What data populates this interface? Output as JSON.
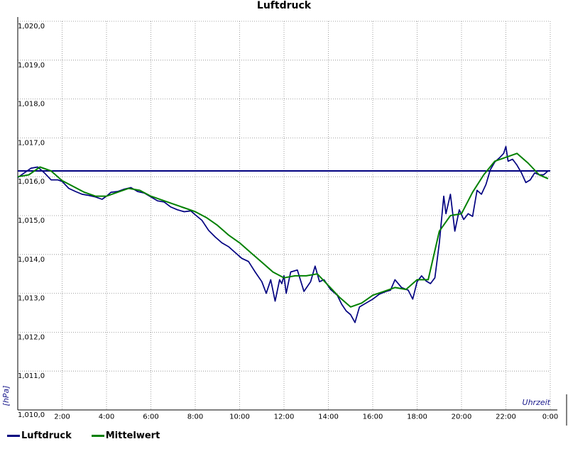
{
  "chart_data": {
    "type": "line",
    "title": "Luftdruck",
    "xlabel": "Uhrzeit",
    "ylabel": "[hPa]",
    "xlim": [
      0,
      24
    ],
    "ylim": [
      1010.0,
      1020.0
    ],
    "x_ticks": [
      {
        "v": 2,
        "label": "2:00"
      },
      {
        "v": 4,
        "label": "4:00"
      },
      {
        "v": 6,
        "label": "6:00"
      },
      {
        "v": 8,
        "label": "8:00"
      },
      {
        "v": 10,
        "label": "10:00"
      },
      {
        "v": 12,
        "label": "12:00"
      },
      {
        "v": 14,
        "label": "14:00"
      },
      {
        "v": 16,
        "label": "16:00"
      },
      {
        "v": 18,
        "label": "18:00"
      },
      {
        "v": 20,
        "label": "20:00"
      },
      {
        "v": 22,
        "label": "22:00"
      },
      {
        "v": 24,
        "label": "0:00"
      }
    ],
    "y_ticks": [
      {
        "v": 1010,
        "label": "1,010,0"
      },
      {
        "v": 1011,
        "label": "1,011,0"
      },
      {
        "v": 1012,
        "label": "1,012,0"
      },
      {
        "v": 1013,
        "label": "1,013,0"
      },
      {
        "v": 1014,
        "label": "1,014,0"
      },
      {
        "v": 1015,
        "label": "1,015,0"
      },
      {
        "v": 1016,
        "label": "1,016,0"
      },
      {
        "v": 1017,
        "label": "1,017,0"
      },
      {
        "v": 1018,
        "label": "1,018,0"
      },
      {
        "v": 1019,
        "label": "1,019,0"
      },
      {
        "v": 1020,
        "label": "1,020,0"
      }
    ],
    "grid": true,
    "legend_position": "bottom-left",
    "reference_line": {
      "y": 1016.15,
      "color": "#000080"
    },
    "series": [
      {
        "name": "Luftdruck",
        "color": "#000080",
        "x": [
          0,
          0.3,
          0.6,
          0.9,
          1.2,
          1.5,
          1.8,
          2.0,
          2.3,
          2.6,
          2.9,
          3.2,
          3.5,
          3.8,
          4.0,
          4.2,
          4.5,
          4.8,
          5.1,
          5.4,
          5.7,
          6.0,
          6.3,
          6.6,
          6.9,
          7.2,
          7.5,
          7.8,
          8.0,
          8.3,
          8.6,
          8.9,
          9.2,
          9.5,
          9.8,
          10.1,
          10.4,
          10.7,
          11.0,
          11.2,
          11.4,
          11.6,
          11.8,
          11.9,
          12.0,
          12.1,
          12.3,
          12.6,
          12.9,
          13.2,
          13.4,
          13.6,
          13.8,
          14.1,
          14.4,
          14.6,
          14.8,
          15.0,
          15.2,
          15.4,
          15.7,
          16.0,
          16.3,
          16.6,
          16.8,
          17.0,
          17.3,
          17.6,
          17.8,
          18.0,
          18.2,
          18.4,
          18.6,
          18.8,
          19.0,
          19.2,
          19.3,
          19.5,
          19.7,
          19.9,
          20.1,
          20.3,
          20.5,
          20.7,
          20.9,
          21.1,
          21.3,
          21.5,
          21.7,
          21.9,
          22.0,
          22.1,
          22.3,
          22.5,
          22.7,
          22.9,
          23.1,
          23.3,
          23.5,
          23.7,
          23.9
        ],
        "values": [
          1015.98,
          1016.1,
          1016.22,
          1016.25,
          1016.1,
          1015.92,
          1015.92,
          1015.88,
          1015.7,
          1015.62,
          1015.55,
          1015.52,
          1015.48,
          1015.42,
          1015.5,
          1015.6,
          1015.62,
          1015.68,
          1015.72,
          1015.62,
          1015.58,
          1015.48,
          1015.38,
          1015.35,
          1015.22,
          1015.15,
          1015.1,
          1015.12,
          1015.02,
          1014.88,
          1014.62,
          1014.45,
          1014.3,
          1014.2,
          1014.05,
          1013.9,
          1013.82,
          1013.55,
          1013.3,
          1013.0,
          1013.35,
          1012.8,
          1013.35,
          1013.25,
          1013.45,
          1013.0,
          1013.55,
          1013.6,
          1013.05,
          1013.3,
          1013.7,
          1013.3,
          1013.35,
          1013.1,
          1012.95,
          1012.72,
          1012.55,
          1012.45,
          1012.25,
          1012.65,
          1012.75,
          1012.85,
          1012.98,
          1013.05,
          1013.08,
          1013.35,
          1013.15,
          1013.08,
          1012.85,
          1013.3,
          1013.45,
          1013.32,
          1013.25,
          1013.4,
          1014.3,
          1015.5,
          1015.05,
          1015.55,
          1014.6,
          1015.15,
          1014.9,
          1015.05,
          1014.98,
          1015.65,
          1015.55,
          1015.8,
          1016.18,
          1016.38,
          1016.48,
          1016.6,
          1016.78,
          1016.4,
          1016.45,
          1016.3,
          1016.1,
          1015.85,
          1015.92,
          1016.1,
          1016.05,
          1016.05,
          1016.15
        ]
      },
      {
        "name": "Mittelwert",
        "color": "#008000",
        "x": [
          0,
          0.5,
          1.0,
          1.5,
          2.0,
          2.5,
          3.0,
          3.5,
          4.0,
          4.5,
          5.0,
          5.5,
          6.0,
          6.5,
          7.0,
          7.5,
          8.0,
          8.5,
          9.0,
          9.5,
          10.0,
          10.5,
          11.0,
          11.5,
          12.0,
          12.5,
          13.0,
          13.5,
          14.0,
          14.5,
          15.0,
          15.5,
          16.0,
          16.5,
          17.0,
          17.5,
          18.0,
          18.5,
          19.0,
          19.5,
          20.0,
          20.5,
          21.0,
          21.5,
          22.0,
          22.5,
          23.0,
          23.5,
          23.9
        ],
        "values": [
          1016.0,
          1016.05,
          1016.25,
          1016.15,
          1015.9,
          1015.75,
          1015.6,
          1015.5,
          1015.5,
          1015.6,
          1015.7,
          1015.65,
          1015.5,
          1015.4,
          1015.3,
          1015.2,
          1015.1,
          1014.95,
          1014.75,
          1014.5,
          1014.3,
          1014.05,
          1013.8,
          1013.55,
          1013.4,
          1013.45,
          1013.45,
          1013.5,
          1013.2,
          1012.9,
          1012.65,
          1012.75,
          1012.95,
          1013.05,
          1013.15,
          1013.1,
          1013.35,
          1013.35,
          1014.6,
          1015.0,
          1015.05,
          1015.6,
          1016.05,
          1016.4,
          1016.5,
          1016.6,
          1016.35,
          1016.05,
          1015.95
        ]
      }
    ]
  }
}
